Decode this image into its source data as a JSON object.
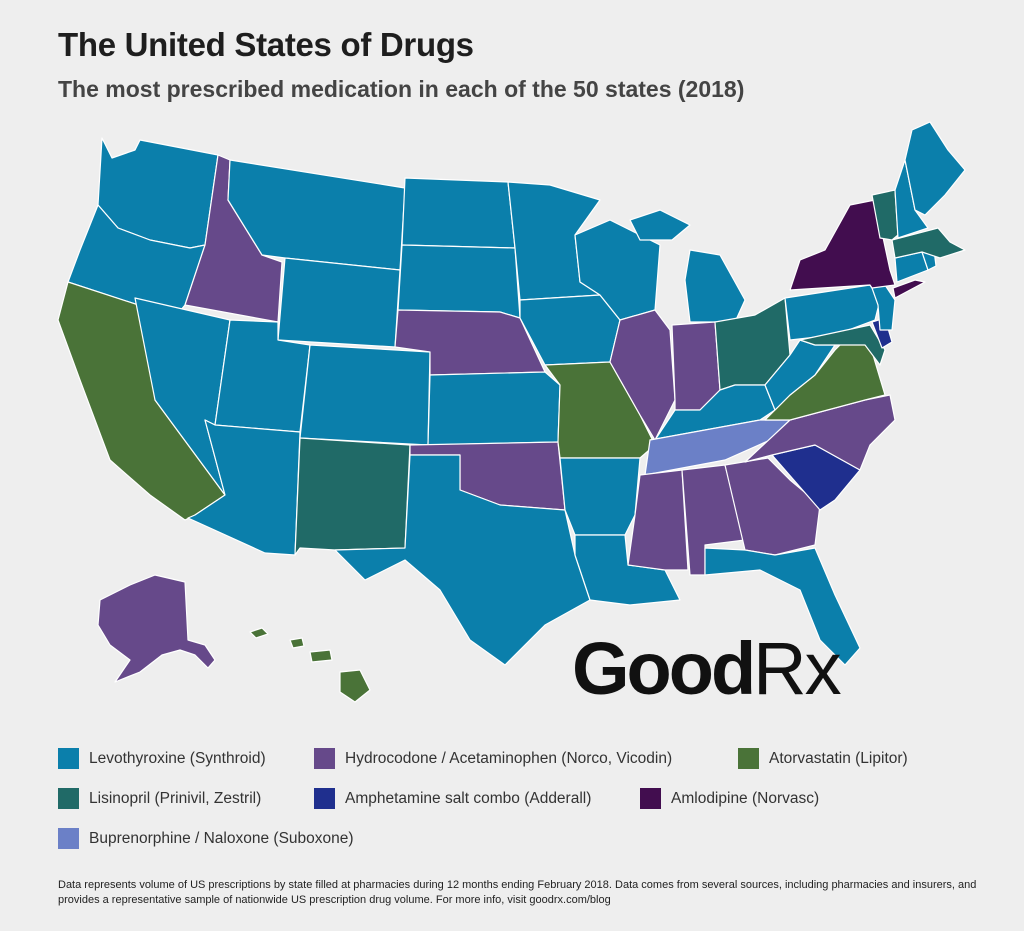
{
  "title": "The United States of Drugs",
  "subtitle": "The most prescribed medication in each of the 50 states (2018)",
  "logo": {
    "text_main": "Good",
    "text_rx": "Rx"
  },
  "colors": {
    "levothyroxine": "#0b7fab",
    "hydrocodone": "#66498a",
    "atorvastatin": "#4a7338",
    "lisinopril": "#206a67",
    "amphetamine": "#1f2f8e",
    "amlodipine": "#420d4f",
    "buprenorphine": "#6b80c7"
  },
  "legend": [
    {
      "label": "Levothyroxine (Synthroid)",
      "color": "#0b7fab"
    },
    {
      "label": "Hydrocodone / Acetaminophen (Norco, Vicodin)",
      "color": "#66498a"
    },
    {
      "label": "Atorvastatin (Lipitor)",
      "color": "#4a7338"
    },
    {
      "label": "Lisinopril (Prinivil, Zestril)",
      "color": "#206a67"
    },
    {
      "label": "Amphetamine salt combo (Adderall)",
      "color": "#1f2f8e"
    },
    {
      "label": "Amlodipine (Norvasc)",
      "color": "#420d4f"
    },
    {
      "label": "Buprenorphine / Naloxone (Suboxone)",
      "color": "#6b80c7"
    }
  ],
  "footnote": "Data represents volume of US prescriptions by state filled at pharmacies during 12 months ending February 2018. Data comes from several sources, including pharmacies and insurers, and provides a representative sample of nationwide US prescription drug volume. For more info, visit goodrx.com/blog",
  "states": {
    "WA": "levothyroxine",
    "OR": "levothyroxine",
    "CA": "atorvastatin",
    "NV": "levothyroxine",
    "ID": "hydrocodone",
    "MT": "levothyroxine",
    "WY": "levothyroxine",
    "UT": "levothyroxine",
    "AZ": "levothyroxine",
    "CO": "levothyroxine",
    "NM": "lisinopril",
    "ND": "levothyroxine",
    "SD": "levothyroxine",
    "NE": "hydrocodone",
    "KS": "levothyroxine",
    "OK": "hydrocodone",
    "TX": "levothyroxine",
    "MN": "levothyroxine",
    "IA": "levothyroxine",
    "MO": "atorvastatin",
    "AR": "levothyroxine",
    "LA": "levothyroxine",
    "WI": "levothyroxine",
    "IL": "hydrocodone",
    "MI": "levothyroxine",
    "IN": "hydrocodone",
    "OH": "lisinopril",
    "KY": "levothyroxine",
    "TN": "buprenorphine",
    "MS": "hydrocodone",
    "AL": "hydrocodone",
    "GA": "hydrocodone",
    "FL": "levothyroxine",
    "SC": "amphetamine",
    "NC": "hydrocodone",
    "VA": "atorvastatin",
    "WV": "levothyroxine",
    "PA": "levothyroxine",
    "NY": "amlodipine",
    "VT": "lisinopril",
    "NH": "levothyroxine",
    "ME": "levothyroxine",
    "MA": "lisinopril",
    "RI": "levothyroxine",
    "CT": "levothyroxine",
    "NJ": "levothyroxine",
    "DE": "amphetamine",
    "MD": "lisinopril",
    "AK": "hydrocodone",
    "HI": "atorvastatin"
  }
}
